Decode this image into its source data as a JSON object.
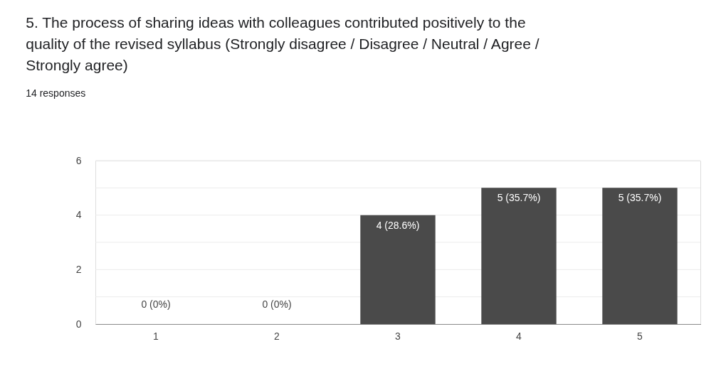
{
  "chart_data": {
    "type": "bar",
    "title": "5. The process of sharing ideas with colleagues contributed positively to the quality of the revised syllabus (Strongly disagree / Disagree / Neutral / Agree / Strongly agree)",
    "subtitle": "14 responses",
    "categories": [
      "1",
      "2",
      "3",
      "4",
      "5"
    ],
    "values": [
      0,
      0,
      4,
      5,
      5
    ],
    "value_labels": [
      "0 (0%)",
      "0 (0%)",
      "4 (28.6%)",
      "5 (35.7%)",
      "5 (35.7%)"
    ],
    "color": "#4a4a4a",
    "ylim": [
      0,
      6
    ],
    "yticks": [
      0,
      {
        "value": 1,
        "label": null
      },
      2,
      {
        "value": 3,
        "label": null
      },
      4,
      {
        "value": 5,
        "label": null
      },
      6
    ],
    "grid": "y"
  }
}
